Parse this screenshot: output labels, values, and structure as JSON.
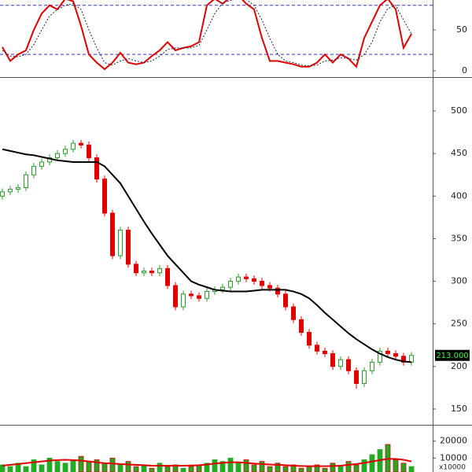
{
  "chart_data": [
    {
      "type": "line",
      "panel": "stochastic",
      "ylim": [
        -7.7,
        86.5
      ],
      "yticks": [
        0,
        50
      ],
      "hlines": [
        20,
        80
      ],
      "hline_color": "#3333cc",
      "series": [
        {
          "color": "#e00000",
          "style": "solid",
          "values": [
            29,
            12,
            20,
            25,
            50,
            70,
            80,
            75,
            88,
            85,
            55,
            20,
            10,
            2,
            10,
            22,
            10,
            8,
            10,
            18,
            25,
            35,
            25,
            28,
            30,
            35,
            80,
            88,
            82,
            90,
            92,
            82,
            75,
            40,
            12,
            12,
            10,
            8,
            5,
            5,
            10,
            20,
            10,
            20,
            15,
            5,
            40,
            60,
            80,
            88,
            75,
            28,
            45
          ]
        },
        {
          "color": "#222244",
          "style": "dashed",
          "values": [
            25,
            18,
            17,
            20,
            32,
            50,
            67,
            75,
            80,
            82,
            75,
            50,
            28,
            10,
            7,
            12,
            15,
            12,
            10,
            12,
            18,
            26,
            28,
            28,
            28,
            31,
            50,
            70,
            83,
            86,
            88,
            87,
            80,
            62,
            40,
            20,
            12,
            10,
            7,
            6,
            7,
            12,
            13,
            16,
            15,
            13,
            20,
            35,
            60,
            76,
            80,
            62,
            45
          ]
        }
      ]
    },
    {
      "type": "candlestick",
      "panel": "price",
      "ylim": [
        131.5,
        538.8
      ],
      "yticks": [
        150,
        200,
        250,
        300,
        350,
        400,
        450,
        500
      ],
      "up_color": "#2a9d2a",
      "down_color": "#e00000",
      "open": [
        400,
        405,
        408,
        410,
        425,
        435,
        440,
        445,
        450,
        455,
        462,
        460,
        445,
        420,
        380,
        330,
        360,
        320,
        310,
        312,
        310,
        315,
        295,
        270,
        285,
        283,
        280,
        288,
        290,
        293,
        300,
        305,
        303,
        300,
        295,
        292,
        285,
        270,
        255,
        240,
        225,
        218,
        215,
        200,
        208,
        195,
        180,
        195,
        205,
        218,
        215,
        212,
        205
      ],
      "high": [
        409,
        412,
        414,
        429,
        439,
        444,
        449,
        454,
        459,
        466,
        466,
        464,
        449,
        424,
        384,
        364,
        364,
        324,
        316,
        316,
        319,
        319,
        299,
        289,
        289,
        287,
        292,
        294,
        297,
        304,
        309,
        309,
        307,
        304,
        299,
        296,
        289,
        274,
        259,
        244,
        229,
        222,
        219,
        212,
        212,
        199,
        199,
        209,
        222,
        222,
        219,
        216,
        217
      ],
      "low": [
        396,
        401,
        404,
        406,
        421,
        431,
        436,
        441,
        446,
        451,
        456,
        441,
        416,
        376,
        326,
        326,
        316,
        306,
        306,
        306,
        306,
        291,
        266,
        266,
        279,
        276,
        276,
        284,
        286,
        289,
        296,
        299,
        296,
        291,
        288,
        281,
        266,
        251,
        236,
        221,
        214,
        211,
        196,
        196,
        191,
        174,
        176,
        191,
        201,
        211,
        208,
        201,
        201
      ],
      "close": [
        405,
        408,
        410,
        425,
        435,
        440,
        445,
        450,
        455,
        462,
        460,
        445,
        420,
        380,
        330,
        360,
        320,
        310,
        312,
        310,
        315,
        295,
        270,
        285,
        283,
        280,
        288,
        290,
        293,
        300,
        305,
        303,
        300,
        295,
        292,
        285,
        270,
        255,
        240,
        225,
        218,
        215,
        200,
        208,
        195,
        180,
        195,
        205,
        218,
        215,
        212,
        205,
        213
      ],
      "series": [
        {
          "color": "#000000",
          "values": [
            455,
            453,
            451,
            449,
            448,
            446,
            444,
            442,
            441,
            440,
            440,
            440,
            440,
            435,
            425,
            415,
            400,
            385,
            370,
            356,
            343,
            330,
            320,
            310,
            300,
            296,
            293,
            290,
            289,
            288,
            288,
            288,
            289,
            290,
            290,
            290,
            290,
            288,
            285,
            280,
            272,
            263,
            255,
            247,
            239,
            232,
            226,
            220,
            215,
            211,
            208,
            206,
            205
          ]
        }
      ],
      "last_label": {
        "value": 213,
        "label": "213.000"
      }
    },
    {
      "type": "bar",
      "panel": "volume",
      "ylim": [
        1800,
        29100
      ],
      "yticks": [
        10000,
        20000
      ],
      "y_unit_label": "x10000",
      "color": "#22aa22",
      "values": [
        6000,
        5000,
        7000,
        5000,
        9000,
        6000,
        10000,
        8000,
        7000,
        9000,
        11000,
        8000,
        9000,
        7000,
        10000,
        6000,
        8000,
        5000,
        6000,
        4000,
        7000,
        5000,
        6000,
        4000,
        5000,
        6000,
        7000,
        9000,
        8000,
        10000,
        7000,
        9000,
        6000,
        8000,
        5000,
        7000,
        5000,
        6000,
        4000,
        5000,
        6000,
        4000,
        7000,
        5000,
        8000,
        6000,
        9000,
        12000,
        15000,
        18000,
        9000,
        7000,
        5000
      ],
      "series": [
        {
          "color": "#e00000",
          "values": [
            5500,
            6000,
            6500,
            7000,
            7500,
            8000,
            8500,
            8800,
            9000,
            8800,
            8500,
            8000,
            7500,
            7000,
            6800,
            6500,
            6200,
            6000,
            5800,
            5500,
            5500,
            5500,
            5500,
            5500,
            5600,
            5800,
            6200,
            6800,
            7200,
            7500,
            7500,
            7200,
            6800,
            6500,
            6200,
            6000,
            5800,
            5500,
            5300,
            5200,
            5200,
            5200,
            5300,
            5500,
            6000,
            6500,
            7200,
            8000,
            8800,
            9500,
            9500,
            9000,
            8000
          ]
        }
      ]
    }
  ]
}
